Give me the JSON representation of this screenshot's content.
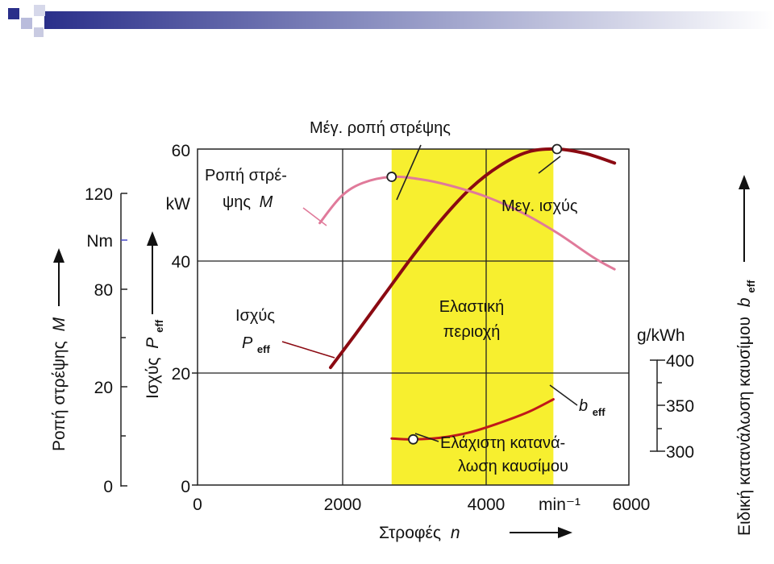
{
  "chart_data": {
    "type": "line",
    "x_axis": {
      "ticks": [
        "0",
        "2000",
        "4000",
        "min⁻¹",
        "6000"
      ],
      "title": "Στροφές",
      "title_var": "n",
      "range": [
        0,
        6000
      ]
    },
    "power_axis": {
      "ticks": [
        "0",
        "20",
        "40",
        "60"
      ],
      "unit": "kW",
      "title": "Ισχύς",
      "title_var": "P",
      "title_sub": "eff",
      "range": [
        0,
        60
      ]
    },
    "torque_axis": {
      "ticks": [
        "0",
        "20",
        "80",
        "120"
      ],
      "unit": "Nm",
      "title": "Ροπή στρέψης",
      "title_var": "M",
      "range": [
        0,
        140
      ]
    },
    "consumption_axis": {
      "ticks": [
        "400",
        "350",
        "300"
      ],
      "unit": "g/kWh",
      "title": "Ειδική κατανάλωση καυσίμου",
      "title_var": "b",
      "title_sub": "eff"
    },
    "shaded_region": {
      "x_from": 2700,
      "x_to": 4950,
      "color": "#f7ef2f"
    },
    "series": [
      {
        "key": "power",
        "axis": "power",
        "color": "#8b0a12",
        "points": [
          [
            1850,
            21
          ],
          [
            2200,
            27
          ],
          [
            2600,
            34
          ],
          [
            3000,
            41
          ],
          [
            3400,
            47.5
          ],
          [
            3800,
            53
          ],
          [
            4200,
            57
          ],
          [
            4600,
            59.5
          ],
          [
            5000,
            60
          ],
          [
            5400,
            59.2
          ],
          [
            5800,
            57.5
          ]
        ]
      },
      {
        "key": "torque",
        "axis": "torque",
        "color": "#e07a9a",
        "points": [
          [
            1700,
            108
          ],
          [
            2000,
            119
          ],
          [
            2300,
            124.5
          ],
          [
            2700,
            127
          ],
          [
            3100,
            126
          ],
          [
            3500,
            123.5
          ],
          [
            4000,
            119
          ],
          [
            4500,
            112.5
          ],
          [
            5000,
            104
          ],
          [
            5500,
            94
          ],
          [
            5800,
            89
          ]
        ]
      },
      {
        "key": "consumption",
        "axis": "consumption",
        "color": "#c0181a",
        "points": [
          [
            2700,
            314
          ],
          [
            3000,
            313
          ],
          [
            3400,
            315
          ],
          [
            3800,
            321
          ],
          [
            4200,
            331
          ],
          [
            4600,
            343
          ],
          [
            4950,
            357
          ]
        ]
      }
    ],
    "markers": [
      {
        "series": "torque",
        "x": 2700,
        "value": 127
      },
      {
        "series": "power",
        "x": 5000,
        "value": 60
      },
      {
        "series": "consumption",
        "x": 3000,
        "value": 313
      }
    ],
    "annotations": {
      "max_torque": "Μέγ. ροπή στρέψης",
      "torque_line1": "Ροπή στρέ-",
      "torque_line2": "ψης",
      "torque_var": "M",
      "max_power": "Μεγ. ισχύς",
      "power_label": "Ισχύς",
      "power_var": "P",
      "power_sub": "eff",
      "elastic_line1": "Ελαστική",
      "elastic_line2": "περιοχή",
      "b_var": "b",
      "b_sub": "eff",
      "min_cons_line1": "Ελάχιστη κατανά-",
      "min_cons_line2": "λωση καυσίμου"
    }
  }
}
